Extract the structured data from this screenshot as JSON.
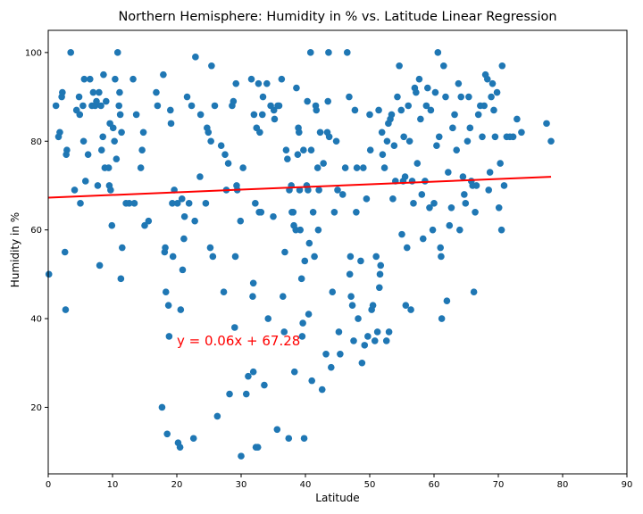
{
  "chart_data": {
    "type": "scatter",
    "title": "Northern Hemisphere: Humidity in % vs. Latitude Linear Regression",
    "xlabel": "Latitude",
    "ylabel": "Humidity in %",
    "xlim": [
      0,
      90
    ],
    "ylim": [
      5,
      105
    ],
    "xticks": [
      "0",
      "10",
      "20",
      "30",
      "40",
      "50",
      "60",
      "70",
      "80",
      "90"
    ],
    "yticks": [
      "20",
      "40",
      "60",
      "80",
      "100"
    ],
    "grid": false,
    "colors": {
      "points": "#1f77b4",
      "regression": "#ff0000",
      "equation": "#ff0000"
    },
    "regression": {
      "slope": 0.06,
      "intercept": 67.28,
      "x_range": [
        0,
        78.2
      ]
    },
    "annotation": {
      "text": "y = 0.06x + 67.28",
      "x": 20,
      "y": 35
    },
    "points": [
      [
        0.1,
        50
      ],
      [
        1.2,
        88
      ],
      [
        1.6,
        81
      ],
      [
        1.8,
        82
      ],
      [
        2.1,
        90
      ],
      [
        2.2,
        91
      ],
      [
        2.6,
        55
      ],
      [
        2.7,
        42
      ],
      [
        2.8,
        77
      ],
      [
        2.9,
        78
      ],
      [
        3.5,
        100
      ],
      [
        4.1,
        69
      ],
      [
        4.4,
        87
      ],
      [
        4.8,
        90
      ],
      [
        4.9,
        86
      ],
      [
        5.0,
        66
      ],
      [
        5.4,
        88
      ],
      [
        5.5,
        80
      ],
      [
        5.6,
        94
      ],
      [
        5.8,
        71
      ],
      [
        6.2,
        77
      ],
      [
        6.5,
        94
      ],
      [
        6.8,
        88
      ],
      [
        7.0,
        91
      ],
      [
        7.3,
        88
      ],
      [
        7.5,
        89
      ],
      [
        7.7,
        70
      ],
      [
        7.9,
        91
      ],
      [
        8.0,
        52
      ],
      [
        8.2,
        88
      ],
      [
        8.3,
        78
      ],
      [
        8.5,
        81
      ],
      [
        8.6,
        95
      ],
      [
        8.8,
        74
      ],
      [
        9.0,
        89
      ],
      [
        9.4,
        74
      ],
      [
        9.5,
        70
      ],
      [
        9.6,
        84
      ],
      [
        9.7,
        69
      ],
      [
        9.9,
        61
      ],
      [
        10.1,
        83
      ],
      [
        10.3,
        80
      ],
      [
        10.4,
        94
      ],
      [
        10.6,
        76
      ],
      [
        10.8,
        100
      ],
      [
        11.0,
        88
      ],
      [
        11.1,
        91
      ],
      [
        11.2,
        86
      ],
      [
        11.3,
        49
      ],
      [
        11.4,
        82
      ],
      [
        11.5,
        56
      ],
      [
        12.1,
        66
      ],
      [
        12.6,
        66
      ],
      [
        13.2,
        94
      ],
      [
        13.4,
        66
      ],
      [
        13.7,
        86
      ],
      [
        14.4,
        74
      ],
      [
        14.6,
        78
      ],
      [
        14.8,
        82
      ],
      [
        15.0,
        61
      ],
      [
        15.6,
        62
      ],
      [
        16.8,
        91
      ],
      [
        17.0,
        88
      ],
      [
        17.7,
        20
      ],
      [
        17.9,
        95
      ],
      [
        18.1,
        55
      ],
      [
        18.2,
        56
      ],
      [
        18.3,
        46
      ],
      [
        18.5,
        14
      ],
      [
        18.7,
        43
      ],
      [
        18.8,
        36
      ],
      [
        19.0,
        87
      ],
      [
        19.1,
        84
      ],
      [
        19.3,
        66
      ],
      [
        19.4,
        54
      ],
      [
        19.6,
        69
      ],
      [
        20.1,
        66
      ],
      [
        20.2,
        12
      ],
      [
        20.5,
        11
      ],
      [
        20.6,
        42
      ],
      [
        20.8,
        67
      ],
      [
        20.9,
        51
      ],
      [
        21.1,
        58
      ],
      [
        21.2,
        63
      ],
      [
        21.6,
        90
      ],
      [
        21.9,
        66
      ],
      [
        22.3,
        88
      ],
      [
        22.6,
        13
      ],
      [
        22.8,
        62
      ],
      [
        22.9,
        99
      ],
      [
        23.6,
        72
      ],
      [
        23.7,
        86
      ],
      [
        24.5,
        66
      ],
      [
        24.7,
        83
      ],
      [
        24.9,
        82
      ],
      [
        25.2,
        56
      ],
      [
        25.3,
        80
      ],
      [
        25.4,
        97
      ],
      [
        25.6,
        54
      ],
      [
        25.9,
        88
      ],
      [
        26.3,
        18
      ],
      [
        26.9,
        79
      ],
      [
        27.3,
        46
      ],
      [
        27.5,
        77
      ],
      [
        27.7,
        69
      ],
      [
        28.0,
        75
      ],
      [
        28.2,
        23
      ],
      [
        28.6,
        88
      ],
      [
        28.8,
        89
      ],
      [
        29.0,
        38
      ],
      [
        29.1,
        54
      ],
      [
        29.2,
        93
      ],
      [
        29.3,
        70
      ],
      [
        29.4,
        69
      ],
      [
        29.9,
        62
      ],
      [
        30.0,
        9
      ],
      [
        30.3,
        74
      ],
      [
        30.8,
        23
      ],
      [
        31.1,
        27
      ],
      [
        31.6,
        94
      ],
      [
        31.8,
        45
      ],
      [
        31.9,
        48
      ],
      [
        31.9,
        28
      ],
      [
        32.0,
        86
      ],
      [
        32.2,
        66
      ],
      [
        32.3,
        11
      ],
      [
        32.4,
        83
      ],
      [
        32.6,
        11
      ],
      [
        32.7,
        93
      ],
      [
        32.8,
        64
      ],
      [
        32.9,
        82
      ],
      [
        33.1,
        64
      ],
      [
        33.3,
        86
      ],
      [
        33.4,
        90
      ],
      [
        33.6,
        25
      ],
      [
        34.0,
        93
      ],
      [
        34.2,
        40
      ],
      [
        34.6,
        88
      ],
      [
        35.0,
        63
      ],
      [
        35.1,
        87
      ],
      [
        35.2,
        85
      ],
      [
        35.6,
        15
      ],
      [
        35.7,
        88
      ],
      [
        35.9,
        88
      ],
      [
        36.3,
        94
      ],
      [
        36.5,
        45
      ],
      [
        36.7,
        37
      ],
      [
        36.8,
        55
      ],
      [
        37.0,
        78
      ],
      [
        37.2,
        76
      ],
      [
        37.4,
        13
      ],
      [
        37.5,
        69
      ],
      [
        37.8,
        70
      ],
      [
        37.9,
        64
      ],
      [
        38.1,
        64
      ],
      [
        38.2,
        61
      ],
      [
        38.3,
        28
      ],
      [
        38.5,
        60
      ],
      [
        38.6,
        92
      ],
      [
        38.8,
        77
      ],
      [
        38.9,
        83
      ],
      [
        39.0,
        82
      ],
      [
        39.1,
        69
      ],
      [
        39.2,
        60
      ],
      [
        39.4,
        49
      ],
      [
        39.5,
        36
      ],
      [
        39.6,
        39
      ],
      [
        39.7,
        78
      ],
      [
        39.8,
        13
      ],
      [
        39.9,
        53
      ],
      [
        40.2,
        70
      ],
      [
        40.3,
        89
      ],
      [
        40.4,
        69
      ],
      [
        40.5,
        41
      ],
      [
        40.6,
        57
      ],
      [
        40.8,
        100
      ],
      [
        40.9,
        78
      ],
      [
        41.0,
        26
      ],
      [
        41.2,
        64
      ],
      [
        41.4,
        54
      ],
      [
        41.6,
        88
      ],
      [
        41.7,
        87
      ],
      [
        41.9,
        74
      ],
      [
        42.0,
        60
      ],
      [
        42.1,
        69
      ],
      [
        42.3,
        82
      ],
      [
        42.6,
        24
      ],
      [
        42.8,
        75
      ],
      [
        43.2,
        32
      ],
      [
        43.4,
        82
      ],
      [
        43.5,
        89
      ],
      [
        43.6,
        100
      ],
      [
        43.7,
        81
      ],
      [
        44.0,
        29
      ],
      [
        44.2,
        46
      ],
      [
        44.5,
        64
      ],
      [
        44.8,
        80
      ],
      [
        45.0,
        69
      ],
      [
        45.2,
        37
      ],
      [
        45.4,
        32
      ],
      [
        45.8,
        68
      ],
      [
        46.2,
        74
      ],
      [
        46.5,
        100
      ],
      [
        46.8,
        90
      ],
      [
        46.9,
        50
      ],
      [
        47.0,
        54
      ],
      [
        47.1,
        45
      ],
      [
        47.3,
        43
      ],
      [
        47.5,
        35
      ],
      [
        47.7,
        87
      ],
      [
        47.9,
        64
      ],
      [
        48.0,
        74
      ],
      [
        48.2,
        40
      ],
      [
        48.6,
        53
      ],
      [
        48.8,
        30
      ],
      [
        49.0,
        74
      ],
      [
        49.2,
        34
      ],
      [
        49.5,
        67
      ],
      [
        49.7,
        36
      ],
      [
        50.0,
        86
      ],
      [
        50.1,
        78
      ],
      [
        50.3,
        42
      ],
      [
        50.5,
        43
      ],
      [
        50.8,
        35
      ],
      [
        51.0,
        54
      ],
      [
        51.2,
        37
      ],
      [
        51.4,
        87
      ],
      [
        51.5,
        47
      ],
      [
        51.6,
        50
      ],
      [
        51.7,
        52
      ],
      [
        51.9,
        82
      ],
      [
        52.0,
        77
      ],
      [
        52.3,
        74
      ],
      [
        52.6,
        35
      ],
      [
        52.7,
        80
      ],
      [
        52.9,
        84
      ],
      [
        53.0,
        37
      ],
      [
        53.2,
        85
      ],
      [
        53.4,
        86
      ],
      [
        53.6,
        67
      ],
      [
        53.8,
        79
      ],
      [
        54.0,
        71
      ],
      [
        54.3,
        90
      ],
      [
        54.6,
        97
      ],
      [
        54.9,
        87
      ],
      [
        55.0,
        59
      ],
      [
        55.2,
        71
      ],
      [
        55.3,
        81
      ],
      [
        55.5,
        72
      ],
      [
        55.6,
        43
      ],
      [
        55.8,
        56
      ],
      [
        56.0,
        88
      ],
      [
        56.2,
        80
      ],
      [
        56.4,
        42
      ],
      [
        56.6,
        71
      ],
      [
        56.8,
        66
      ],
      [
        57.0,
        92
      ],
      [
        57.2,
        91
      ],
      [
        57.4,
        75
      ],
      [
        57.7,
        94
      ],
      [
        57.9,
        85
      ],
      [
        58.1,
        68
      ],
      [
        58.3,
        58
      ],
      [
        58.6,
        71
      ],
      [
        58.8,
        88
      ],
      [
        59.0,
        92
      ],
      [
        59.3,
        65
      ],
      [
        59.5,
        87
      ],
      [
        59.8,
        60
      ],
      [
        60.0,
        66
      ],
      [
        60.2,
        91
      ],
      [
        60.4,
        79
      ],
      [
        60.6,
        100
      ],
      [
        60.8,
        81
      ],
      [
        61.0,
        56
      ],
      [
        61.1,
        54
      ],
      [
        61.2,
        40
      ],
      [
        61.5,
        97
      ],
      [
        61.8,
        90
      ],
      [
        62.0,
        44
      ],
      [
        62.2,
        73
      ],
      [
        62.4,
        61
      ],
      [
        62.7,
        65
      ],
      [
        62.9,
        83
      ],
      [
        63.2,
        86
      ],
      [
        63.5,
        78
      ],
      [
        63.8,
        93
      ],
      [
        64.0,
        60
      ],
      [
        64.2,
        90
      ],
      [
        64.5,
        72
      ],
      [
        64.7,
        68
      ],
      [
        64.9,
        66
      ],
      [
        65.2,
        80
      ],
      [
        65.4,
        90
      ],
      [
        65.6,
        83
      ],
      [
        65.8,
        71
      ],
      [
        66.0,
        70
      ],
      [
        66.2,
        46
      ],
      [
        66.4,
        64
      ],
      [
        66.6,
        70
      ],
      [
        66.9,
        86
      ],
      [
        67.2,
        88
      ],
      [
        67.5,
        81
      ],
      [
        67.8,
        88
      ],
      [
        68.0,
        95
      ],
      [
        68.3,
        94
      ],
      [
        68.5,
        69
      ],
      [
        68.7,
        73
      ],
      [
        68.9,
        90
      ],
      [
        69.1,
        93
      ],
      [
        69.3,
        87
      ],
      [
        69.5,
        81
      ],
      [
        69.8,
        91
      ],
      [
        70.1,
        65
      ],
      [
        70.3,
        75
      ],
      [
        70.5,
        60
      ],
      [
        70.6,
        97
      ],
      [
        70.9,
        70
      ],
      [
        71.3,
        81
      ],
      [
        71.8,
        81
      ],
      [
        72.3,
        81
      ],
      [
        72.9,
        85
      ],
      [
        73.6,
        82
      ],
      [
        77.5,
        84
      ],
      [
        78.2,
        80
      ]
    ]
  }
}
